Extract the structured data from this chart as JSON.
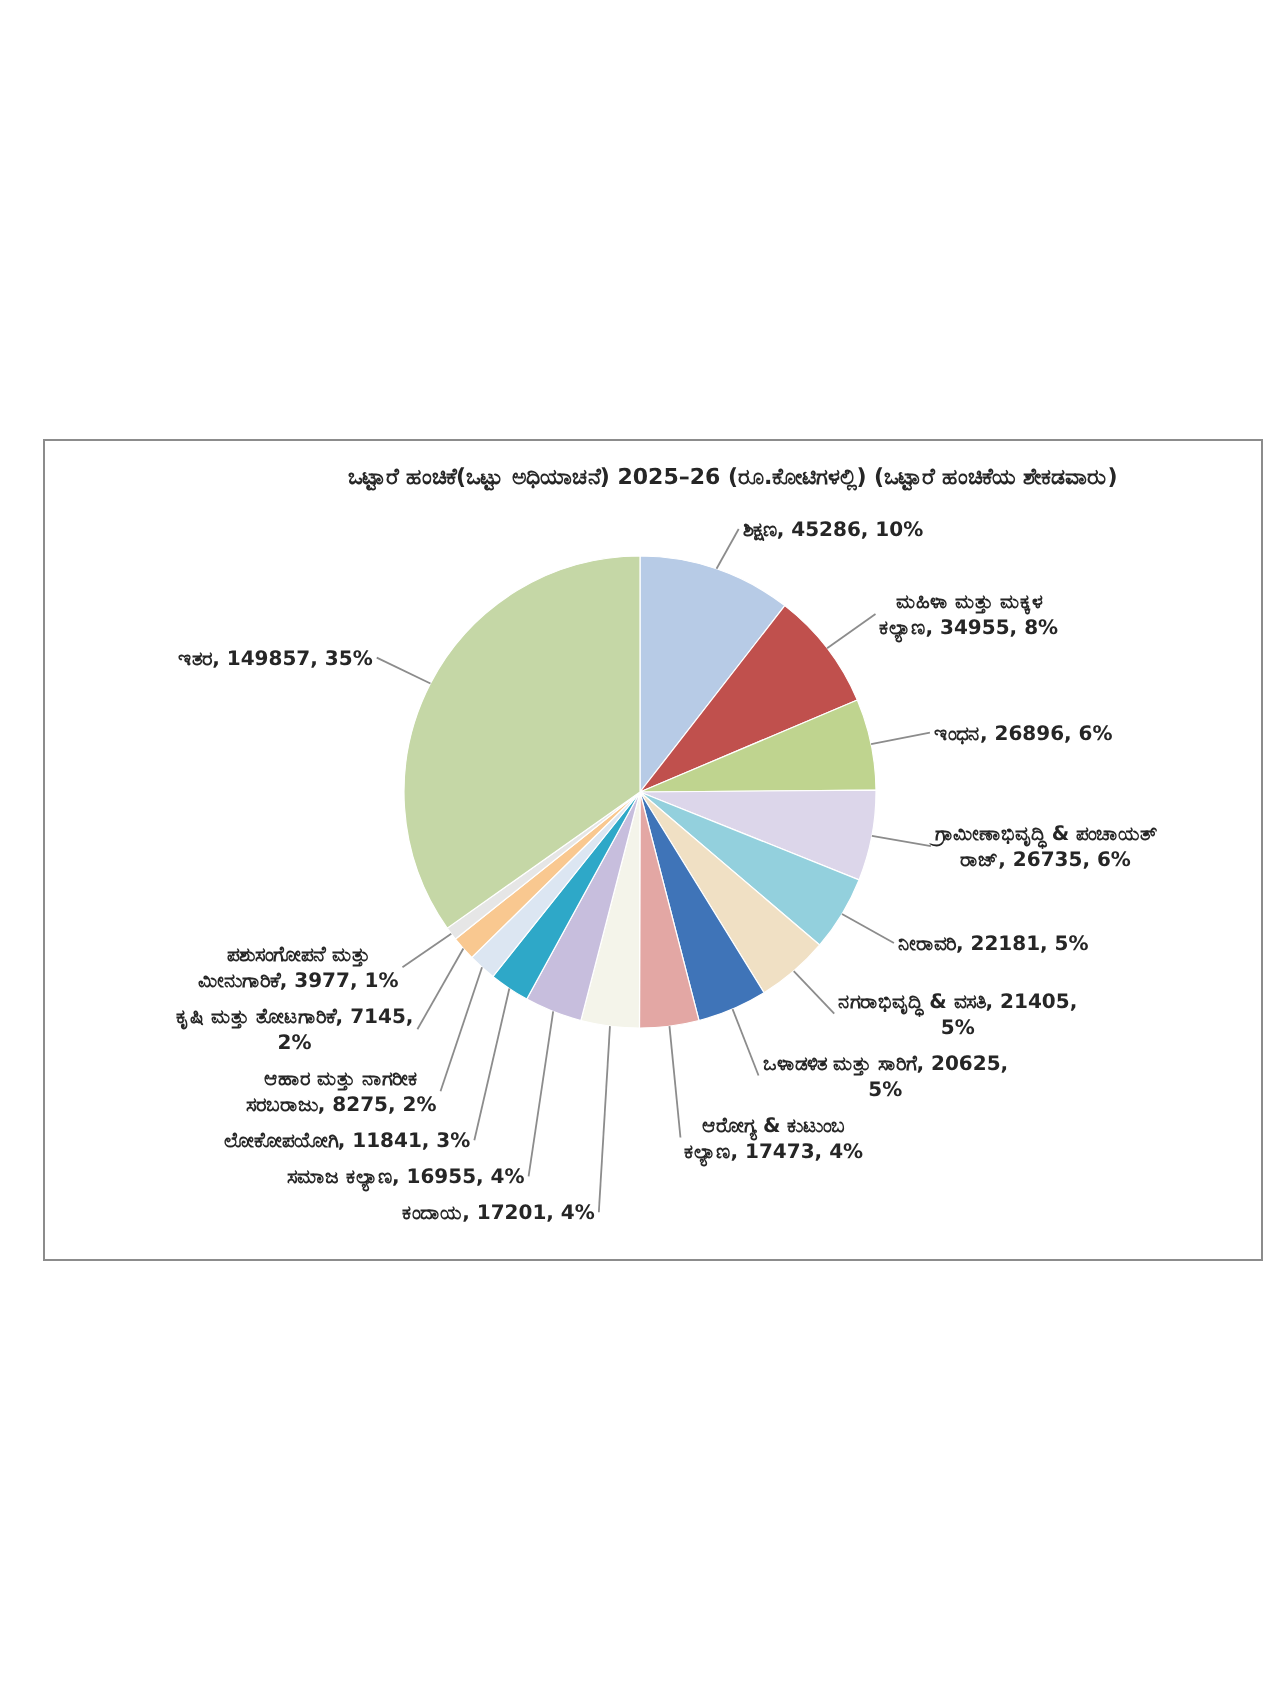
{
  "chart_data": {
    "type": "pie",
    "title": "ಒಟ್ಟಾರೆ ಹಂಚಿಕೆ(ಒಟ್ಟು ಅಧಿಯಾಚನೆ) 2025–26 (ರೂ.ಕೋಟಿಗಳಲ್ಲಿ)  (ಒಟ್ಟಾರೆ ಹಂಚಿಕೆಯ ಶೇಕಡವಾರು)",
    "categories": [
      "ಶಿಕ್ಷಣ",
      "ಮಹಿಳಾ ಮತ್ತು ಮಕ್ಕಳ ಕಲ್ಯಾಣ",
      "ಇಂಧನ",
      "ಗ್ರಾಮೀಣಾಭಿವೃದ್ಧಿ & ಪಂಚಾಯತ್ ರಾಜ್",
      "ನೀರಾವರಿ",
      "ನಗರಾಭಿವೃದ್ಧಿ & ವಸತಿ",
      "ಒಳಾಡಳಿತ ಮತ್ತು ಸಾರಿಗೆ",
      "ಆರೋಗ್ಯ & ಕುಟುಂಬ ಕಲ್ಯಾಣ",
      "ಕಂದಾಯ",
      "ಸಮಾಜ ಕಲ್ಯಾಣ",
      "ಲೋಕೋಪಯೋಗಿ",
      "ಆಹಾರ ಮತ್ತು ನಾಗರೀಕ ಸರಬರಾಜು",
      "ಕೃಷಿ ಮತ್ತು ತೋಟಗಾರಿಕೆ",
      "ಪಶುಸಂಗೋಪನೆ ಮತ್ತು ಮೀನುಗಾರಿಕೆ",
      "ಇತರ"
    ],
    "values": [
      45286,
      34955,
      26896,
      26735,
      22181,
      21405,
      20625,
      17473,
      17201,
      16955,
      11841,
      8275,
      7145,
      3977,
      149857
    ],
    "value_labels": [
      "45286, 10%",
      "34955, 8%",
      "26896, 6%",
      "26735, 6%",
      "22181, 5%",
      "21405, 5%",
      "20625, 5%",
      "17473, 4%",
      "17201, 4%",
      "16955, 4%",
      "11841, 3%",
      "8275, 2%",
      "7145, 2%",
      "3977, 1%",
      "149857, 35%"
    ],
    "colors": [
      "#b7cbe6",
      "#c0504d",
      "#bfd48f",
      "#dcd6ea",
      "#93d0dd",
      "#f0e0c4",
      "#3f74b8",
      "#e3a7a4",
      "#f4f4ea",
      "#c7bedd",
      "#2ea8c8",
      "#dce6f2",
      "#f9c890",
      "#e6e6e6",
      "#c5d7a6"
    ]
  }
}
